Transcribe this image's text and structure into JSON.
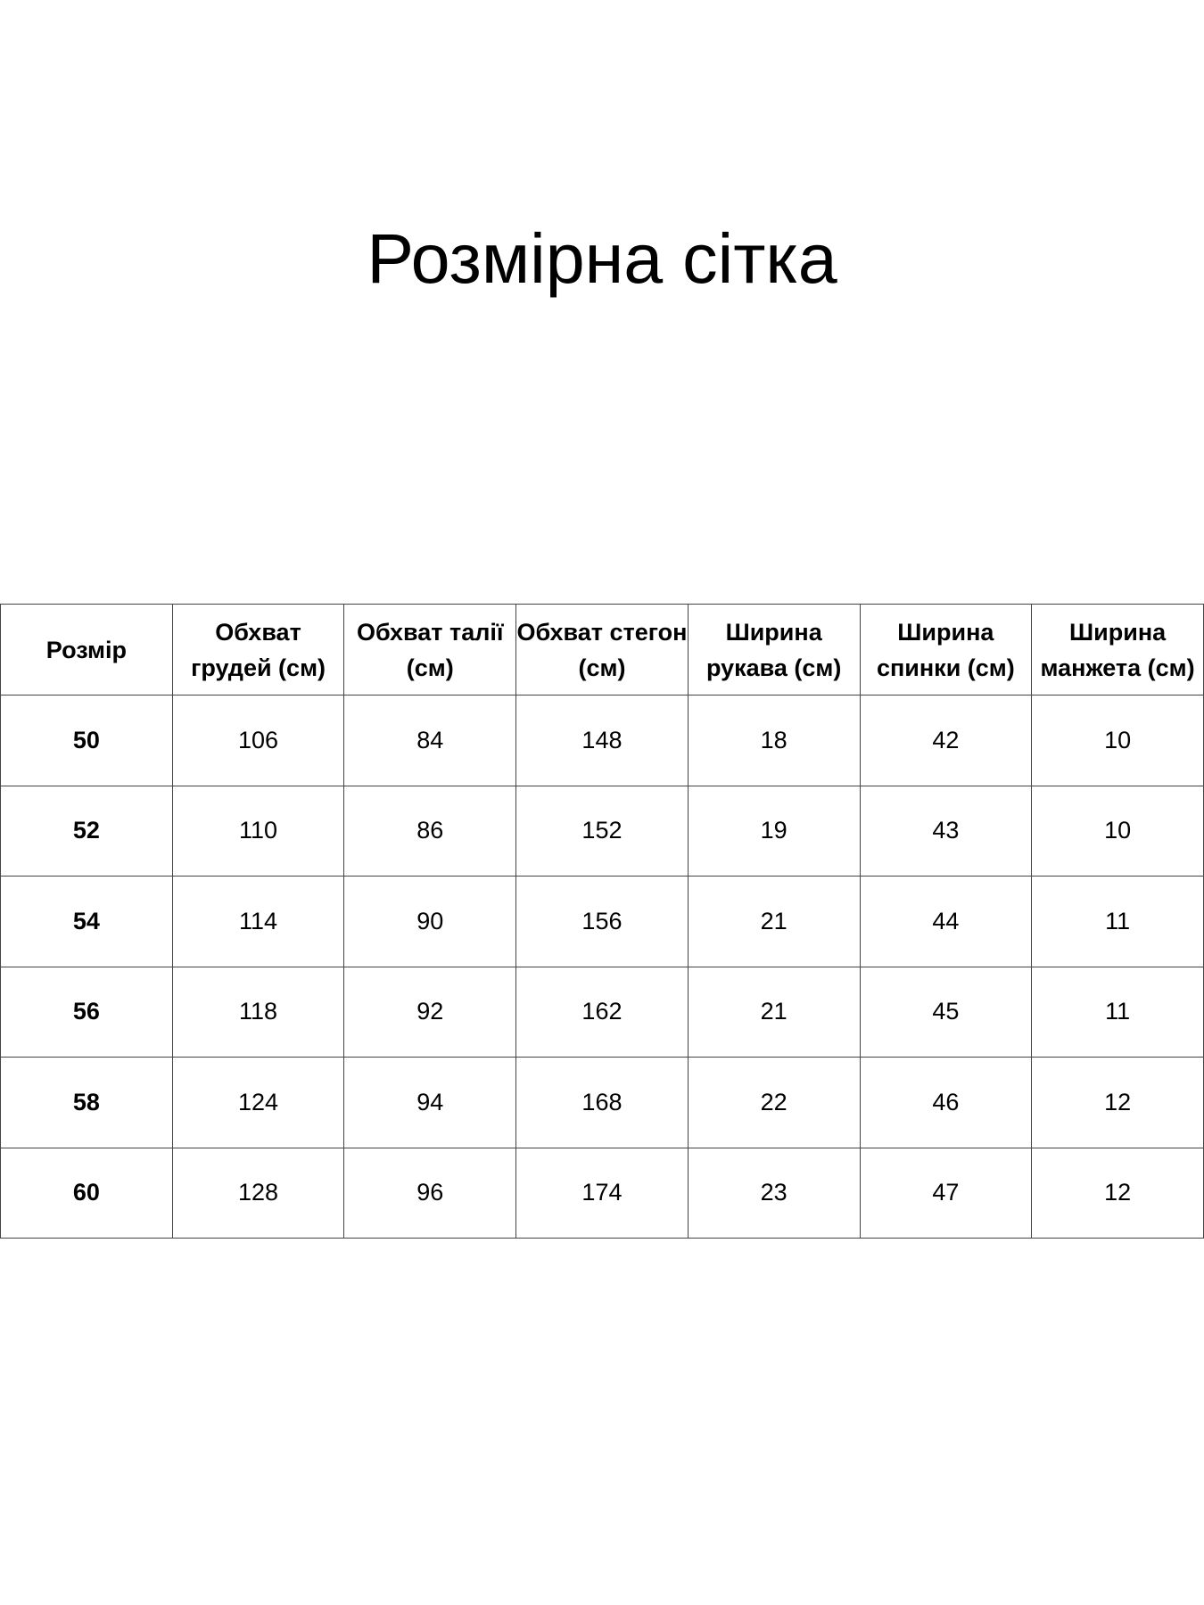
{
  "title": "Розмірна сітка",
  "table": {
    "headers": [
      "Розмір",
      "Обхват грудей (см)",
      "Обхват талії (см)",
      "Обхват стегон (см)",
      "Ширина рукава (см)",
      "Ширина спинки (см)",
      "Ширина манжета (см)"
    ],
    "rows": [
      [
        "50",
        "106",
        "84",
        "148",
        "18",
        "42",
        "10"
      ],
      [
        "52",
        "110",
        "86",
        "152",
        "19",
        "43",
        "10"
      ],
      [
        "54",
        "114",
        "90",
        "156",
        "21",
        "44",
        "11"
      ],
      [
        "56",
        "118",
        "92",
        "162",
        "21",
        "45",
        "11"
      ],
      [
        "58",
        "124",
        "94",
        "168",
        "22",
        "46",
        "12"
      ],
      [
        "60",
        "128",
        "96",
        "174",
        "23",
        "47",
        "12"
      ]
    ]
  }
}
